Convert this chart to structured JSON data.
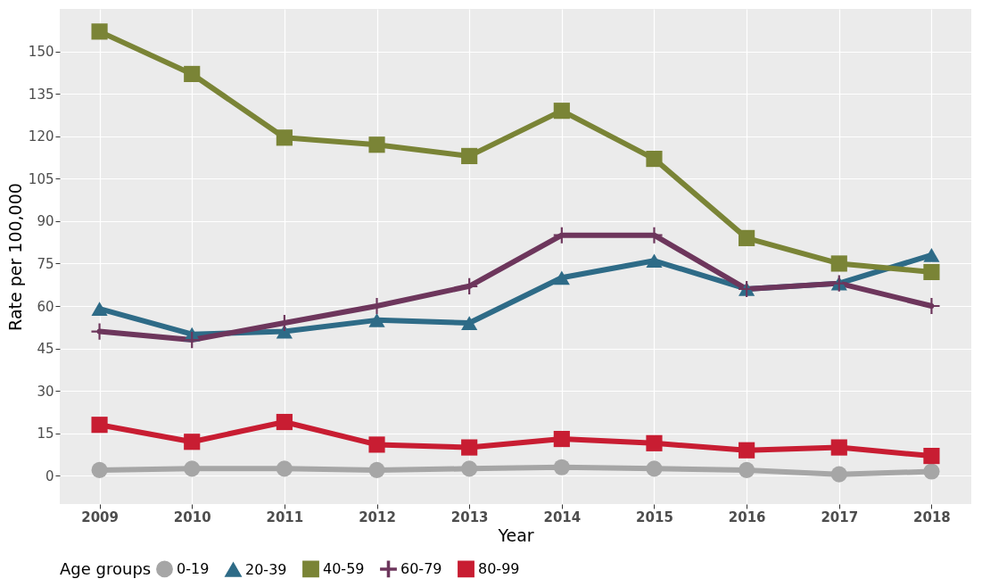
{
  "chart_data": {
    "type": "line",
    "xlabel": "Year",
    "ylabel": "Rate per 100,000",
    "legend_title": "Age groups",
    "categories": [
      "2009",
      "2010",
      "2011",
      "2012",
      "2013",
      "2014",
      "2015",
      "2016",
      "2017",
      "2018"
    ],
    "series": [
      {
        "name": "0-19",
        "color": "#a6a6a6",
        "marker": "circle",
        "values": [
          2,
          2.5,
          2.5,
          2,
          2.5,
          3,
          2.5,
          2,
          0.5,
          1.5
        ]
      },
      {
        "name": "20-39",
        "color": "#2e6b87",
        "marker": "triangle",
        "values": [
          59,
          50,
          51,
          55,
          54,
          70,
          76,
          66,
          68,
          78
        ]
      },
      {
        "name": "40-59",
        "color": "#7a8436",
        "marker": "square",
        "values": [
          157,
          142,
          119.5,
          117,
          113,
          129,
          112,
          84,
          75,
          72
        ]
      },
      {
        "name": "60-79",
        "color": "#6d365c",
        "marker": "cross",
        "values": [
          51,
          48,
          54,
          60,
          67,
          85,
          85,
          66,
          68,
          60
        ]
      },
      {
        "name": "80-99",
        "color": "#c81d32",
        "marker": "square",
        "values": [
          18,
          12,
          19,
          11,
          10,
          13,
          11.5,
          9,
          10,
          7
        ]
      }
    ],
    "ylim": [
      -10,
      165
    ],
    "yticks": [
      0,
      15,
      30,
      45,
      60,
      75,
      90,
      105,
      120,
      135,
      150
    ],
    "grid": true,
    "legend": "bottom"
  }
}
